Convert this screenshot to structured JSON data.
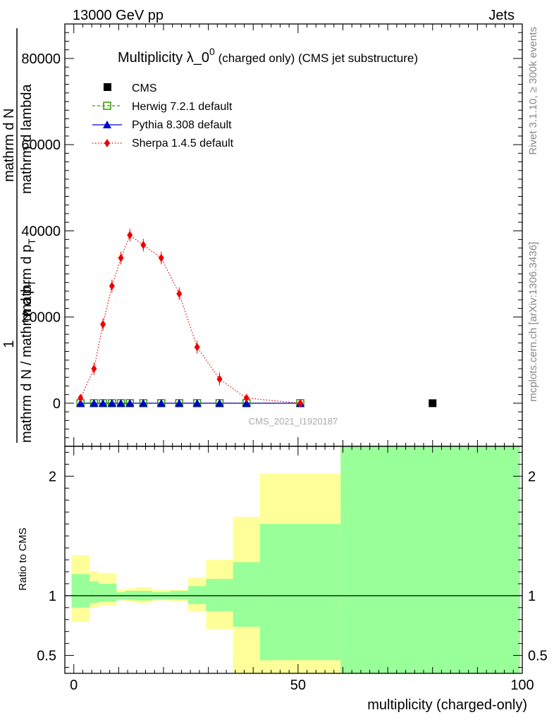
{
  "header": {
    "left": "13000 GeV pp",
    "right": "Jets"
  },
  "side": {
    "rivet": "Rivet 3.1.10, ≥ 300k events",
    "mcplots": "mcplots.cern.ch [arXiv:1306.3436]"
  },
  "watermark": "CMS_2021_I1920187",
  "chart_data": {
    "type": "line",
    "title": "Multiplicity λ_0",
    "title_sup": "0",
    "title_tail": " (charged only) (CMS jet substructure)",
    "xlabel": "multiplicity (charged-only)",
    "ylabel_parts": [
      "1",
      "mathrm d N / mathrm d p",
      "T",
      "mathrm d N",
      "mathrm d p",
      "T",
      "mathrm d lambda"
    ],
    "ylabel_full": "1 / (mathrm d N / mathrm d p_T) mathrm d^2N / (mathrm d p_T mathrm d lambda)",
    "ratio_ylabel": "Ratio to CMS",
    "xlim": [
      -2,
      100
    ],
    "xticks": [
      0,
      50,
      100
    ],
    "ylim": [
      -10000,
      88000
    ],
    "yticks": [
      0,
      20000,
      40000,
      60000,
      80000
    ],
    "ratio_ylim": [
      0.35,
      2.25
    ],
    "ratio_yticks": [
      0.5,
      1,
      2
    ],
    "legend": [
      {
        "name": "CMS",
        "color": "#000000",
        "marker": "square"
      },
      {
        "name": "Herwig 7.2.1 default",
        "color": "#339900",
        "marker": "open-square"
      },
      {
        "name": "Pythia 8.308 default",
        "color": "#0000cc",
        "marker": "triangle"
      },
      {
        "name": "Sherpa 1.4.5 default",
        "color": "#ee0000",
        "marker": "diamond"
      }
    ],
    "series": [
      {
        "name": "CMS",
        "x": [
          80
        ],
        "y": [
          0
        ]
      },
      {
        "name": "Herwig 7.2.1 default",
        "x": [
          1.5,
          4.5,
          6.5,
          8.5,
          10.5,
          12.5,
          15.5,
          19.5,
          23.5,
          27.5,
          32.5,
          38.5,
          50.5
        ],
        "y": [
          0,
          0,
          0,
          0,
          0,
          0,
          0,
          0,
          0,
          0,
          0,
          0,
          0
        ]
      },
      {
        "name": "Pythia 8.308 default",
        "x": [
          1.5,
          4.5,
          6.5,
          8.5,
          10.5,
          12.5,
          15.5,
          19.5,
          23.5,
          27.5,
          32.5,
          38.5,
          50.5
        ],
        "y": [
          0,
          0,
          0,
          0,
          0,
          0,
          0,
          0,
          0,
          0,
          0,
          0,
          0
        ]
      },
      {
        "name": "Sherpa 1.4.5 default",
        "x": [
          1.5,
          4.5,
          6.5,
          8.5,
          10.5,
          12.5,
          15.5,
          19.5,
          23.5,
          27.5,
          32.5,
          38.5,
          50.5
        ],
        "y": [
          1200,
          8000,
          18300,
          27200,
          33700,
          39000,
          36700,
          33700,
          25400,
          13000,
          5600,
          1200,
          0
        ]
      }
    ],
    "ratio_bands": [
      {
        "x0": -0.5,
        "x1": 3.5,
        "y_lo": 0.78,
        "y_hi": 1.34,
        "g_lo": 0.9,
        "g_hi": 1.18
      },
      {
        "x0": 3.5,
        "x1": 5.5,
        "y_lo": 0.9,
        "y_hi": 1.2,
        "g_lo": 0.94,
        "g_hi": 1.12
      },
      {
        "x0": 5.5,
        "x1": 7.5,
        "y_lo": 0.92,
        "y_hi": 1.19,
        "g_lo": 0.95,
        "g_hi": 1.1
      },
      {
        "x0": 7.5,
        "x1": 9.5,
        "y_lo": 0.92,
        "y_hi": 1.19,
        "g_lo": 0.95,
        "g_hi": 1.1
      },
      {
        "x0": 9.5,
        "x1": 11.5,
        "y_lo": 0.96,
        "y_hi": 1.05,
        "g_lo": 0.97,
        "g_hi": 1.03
      },
      {
        "x0": 11.5,
        "x1": 13.5,
        "y_lo": 0.95,
        "y_hi": 1.06,
        "g_lo": 0.97,
        "g_hi": 1.04
      },
      {
        "x0": 13.5,
        "x1": 17.5,
        "y_lo": 0.94,
        "y_hi": 1.07,
        "g_lo": 0.96,
        "g_hi": 1.04
      },
      {
        "x0": 17.5,
        "x1": 21.5,
        "y_lo": 0.96,
        "y_hi": 1.05,
        "g_lo": 0.97,
        "g_hi": 1.03
      },
      {
        "x0": 21.5,
        "x1": 25.5,
        "y_lo": 0.95,
        "y_hi": 1.05,
        "g_lo": 0.97,
        "g_hi": 1.04
      },
      {
        "x0": 25.5,
        "x1": 29.5,
        "y_lo": 0.87,
        "y_hi": 1.15,
        "g_lo": 0.93,
        "g_hi": 1.08
      },
      {
        "x0": 29.5,
        "x1": 35.5,
        "y_lo": 0.72,
        "y_hi": 1.3,
        "g_lo": 0.87,
        "g_hi": 1.14
      },
      {
        "x0": 35.5,
        "x1": 41.5,
        "y_lo": 0.35,
        "y_hi": 1.66,
        "g_lo": 0.74,
        "g_hi": 1.28
      },
      {
        "x0": 41.5,
        "x1": 59.5,
        "y_lo": 0.35,
        "y_hi": 2.02,
        "g_lo": 0.46,
        "g_hi": 1.6
      },
      {
        "x0": 59.5,
        "x1": 99.5,
        "y_lo": 0.35,
        "y_hi": 2.25,
        "g_lo": 0.35,
        "g_hi": 2.25
      }
    ],
    "colors": {
      "yellow": "#ffff99",
      "green": "#99ff99"
    }
  }
}
